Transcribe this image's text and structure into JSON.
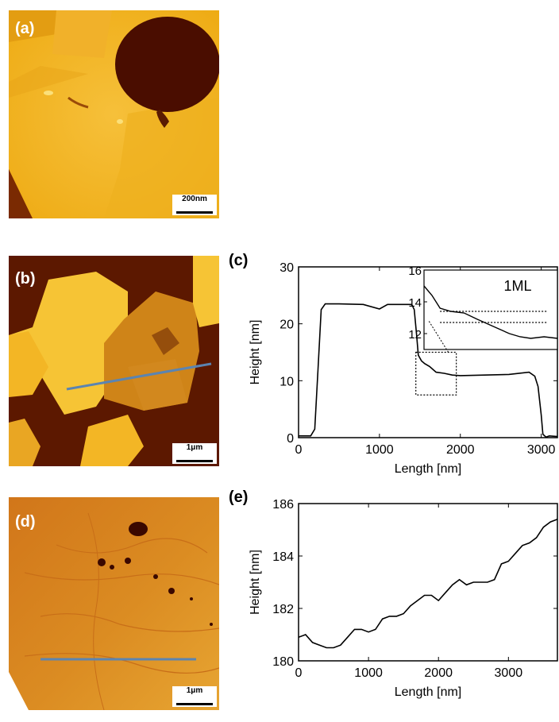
{
  "panels": {
    "a": {
      "label": "(a)",
      "scale": "200nm"
    },
    "b": {
      "label": "(b)",
      "scale": "1μm"
    },
    "d": {
      "label": "(d)",
      "scale": "1μm"
    }
  },
  "colors": {
    "afm_bright": "#f2b51e",
    "afm_mid": "#d98f10",
    "afm_dark": "#5a1400",
    "line_profile": "#5b84b1"
  },
  "chart_data": [
    {
      "id": "c",
      "panel_label": "(c)",
      "type": "line",
      "xlabel": "Length [nm]",
      "ylabel": "Height [nm]",
      "xlim": [
        0,
        3200
      ],
      "ylim": [
        0,
        30
      ],
      "xticks": [
        0,
        1000,
        2000,
        3000
      ],
      "yticks": [
        0,
        10,
        20,
        30
      ],
      "x": [
        0,
        150,
        200,
        240,
        280,
        330,
        500,
        800,
        1000,
        1100,
        1200,
        1400,
        1430,
        1460,
        1480,
        1520,
        1560,
        1620,
        1700,
        1800,
        1900,
        2000,
        2300,
        2600,
        2850,
        2920,
        2960,
        3000,
        3020,
        3060,
        3100,
        3200
      ],
      "y": [
        0.3,
        0.3,
        1.5,
        12,
        22.5,
        23.5,
        23.5,
        23.4,
        22.6,
        23.4,
        23.4,
        23.4,
        22.5,
        18,
        14.5,
        13.5,
        13,
        12.5,
        11.5,
        11.3,
        11,
        10.9,
        11,
        11.1,
        11.5,
        10.8,
        9,
        4,
        0.6,
        0.1,
        0.3,
        0.2
      ],
      "inset": {
        "label": "1ML",
        "xlim": [
          1500,
          2000
        ],
        "ylim": [
          11,
          16
        ],
        "yticks": [
          12,
          14,
          16
        ],
        "x": [
          1500,
          1530,
          1560,
          1600,
          1650,
          1700,
          1740,
          1780,
          1820,
          1860,
          1900,
          1950,
          2000
        ],
        "y": [
          15,
          14.4,
          13.6,
          13.4,
          13.3,
          12.9,
          12.6,
          12.3,
          12.0,
          11.8,
          11.7,
          11.8,
          11.7
        ],
        "ref_levels": [
          13.4,
          12.7
        ]
      }
    },
    {
      "id": "e",
      "panel_label": "(e)",
      "type": "line",
      "xlabel": "Length [nm]",
      "ylabel": "Height [nm]",
      "xlim": [
        0,
        3700
      ],
      "ylim": [
        180,
        186
      ],
      "xticks": [
        0,
        1000,
        2000,
        3000
      ],
      "yticks": [
        180,
        182,
        184,
        186
      ],
      "x": [
        0,
        100,
        200,
        300,
        400,
        500,
        600,
        700,
        800,
        900,
        1000,
        1100,
        1200,
        1300,
        1400,
        1500,
        1600,
        1700,
        1800,
        1900,
        2000,
        2100,
        2200,
        2300,
        2400,
        2500,
        2600,
        2700,
        2800,
        2900,
        3000,
        3100,
        3200,
        3300,
        3400,
        3500,
        3600,
        3700
      ],
      "y": [
        180.9,
        181.0,
        180.7,
        180.6,
        180.5,
        180.5,
        180.6,
        180.9,
        181.2,
        181.2,
        181.1,
        181.2,
        181.6,
        181.7,
        181.7,
        181.8,
        182.1,
        182.3,
        182.5,
        182.5,
        182.3,
        182.6,
        182.9,
        183.1,
        182.9,
        183.0,
        183.0,
        183.0,
        183.1,
        183.7,
        183.8,
        184.1,
        184.4,
        184.5,
        184.7,
        185.1,
        185.3,
        185.4
      ]
    }
  ]
}
